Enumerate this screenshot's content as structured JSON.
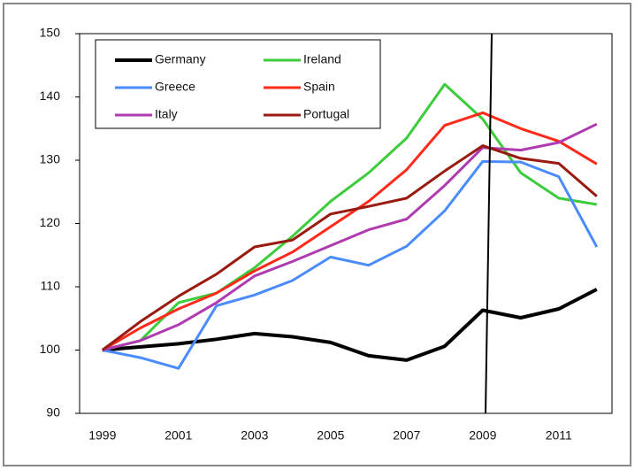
{
  "chart_data": {
    "type": "line",
    "categories": [
      "1999",
      null,
      "2001",
      null,
      "2003",
      null,
      "2005",
      null,
      "2007",
      null,
      "2009",
      null,
      "2011",
      null
    ],
    "series": [
      {
        "name": "Germany",
        "color": "#000000",
        "values": [
          100,
          100.5,
          101,
          101.7,
          102.6,
          102.1,
          101.2,
          99.1,
          98.4,
          100.6,
          106.3,
          105.1,
          106.5,
          109.6
        ]
      },
      {
        "name": "Ireland",
        "color": "#3ccc3c",
        "values": [
          100,
          101.5,
          107.5,
          109,
          113,
          118,
          123.5,
          128,
          133.5,
          142,
          136.5,
          128,
          124,
          123
        ]
      },
      {
        "name": "Greece",
        "color": "#4a8cff",
        "values": [
          100,
          98.8,
          97.1,
          107,
          108.7,
          111,
          114.7,
          113.4,
          116.4,
          122,
          129.8,
          129.7,
          127.4,
          116.3
        ]
      },
      {
        "name": "Spain",
        "color": "#ff2a1a",
        "values": [
          100,
          103.5,
          106.5,
          109,
          112.5,
          115.5,
          119.5,
          123.5,
          128.5,
          135.5,
          137.5,
          135,
          133,
          129.4
        ]
      },
      {
        "name": "Italy",
        "color": "#b03ab0",
        "values": [
          100,
          101.5,
          104,
          107.5,
          111.7,
          114,
          116.5,
          119,
          120.7,
          126,
          132,
          131.6,
          132.8,
          135.7
        ]
      },
      {
        "name": "Portugal",
        "color": "#9a1a10",
        "values": [
          100,
          104.5,
          108.5,
          112,
          116.3,
          117.4,
          121.5,
          122.7,
          124,
          128.3,
          132.3,
          130.3,
          129.5,
          124.3
        ]
      }
    ],
    "ylim": [
      90,
      150
    ],
    "yticks": [
      90,
      100,
      110,
      120,
      130,
      140,
      150
    ],
    "grid": false
  }
}
